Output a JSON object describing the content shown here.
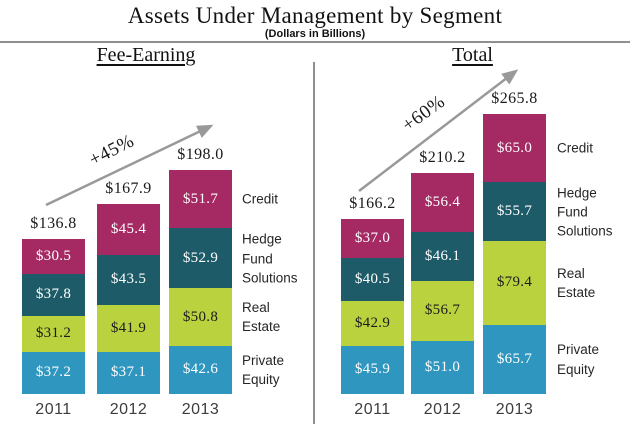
{
  "header": {
    "title": "Assets Under Management by Segment",
    "subtitle": "(Dollars in Billions)"
  },
  "accent_colors": {
    "credit": "#a52963",
    "hedge_fund_solutions": "#1e5b68",
    "real_estate": "#b9d23e",
    "private_equity": "#2e96bf",
    "arrow_gray": "#999999",
    "divider_gray": "#8f8f8f"
  },
  "chart_data": [
    {
      "type": "bar",
      "stacked": true,
      "title": "Fee-Earning",
      "growth_annotation": "+45%",
      "categories": [
        "2011",
        "2012",
        "2013"
      ],
      "series": [
        {
          "name": "Credit",
          "color": "#a52963",
          "label_color": "#ffffff",
          "values": [
            30.5,
            45.4,
            51.7
          ]
        },
        {
          "name": "Hedge Fund Solutions",
          "color": "#1e5b68",
          "label_color": "#ffffff",
          "values": [
            37.8,
            43.5,
            52.9
          ]
        },
        {
          "name": "Real Estate",
          "color": "#b9d23e",
          "label_color": "#1c1c1c",
          "values": [
            31.2,
            41.9,
            50.8
          ]
        },
        {
          "name": "Private Equity",
          "color": "#2e96bf",
          "label_color": "#ffffff",
          "values": [
            37.2,
            37.1,
            42.6
          ]
        }
      ],
      "totals": [
        136.8,
        167.9,
        198.0
      ],
      "value_prefix": "$",
      "grid": false,
      "legend_position": "right-of-last-bar"
    },
    {
      "type": "bar",
      "stacked": true,
      "title": "Total",
      "growth_annotation": "+60%",
      "categories": [
        "2011",
        "2012",
        "2013"
      ],
      "series": [
        {
          "name": "Credit",
          "color": "#a52963",
          "label_color": "#ffffff",
          "values": [
            37.0,
            56.4,
            65.0
          ]
        },
        {
          "name": "Hedge Fund Solutions",
          "color": "#1e5b68",
          "label_color": "#ffffff",
          "values": [
            40.5,
            46.1,
            55.7
          ]
        },
        {
          "name": "Real Estate",
          "color": "#b9d23e",
          "label_color": "#1c1c1c",
          "values": [
            42.9,
            56.7,
            79.4
          ]
        },
        {
          "name": "Private Equity",
          "color": "#2e96bf",
          "label_color": "#ffffff",
          "values": [
            45.9,
            51.0,
            65.7
          ]
        }
      ],
      "totals": [
        166.2,
        210.2,
        265.8
      ],
      "value_prefix": "$",
      "grid": false,
      "legend_position": "right-of-last-bar"
    }
  ]
}
